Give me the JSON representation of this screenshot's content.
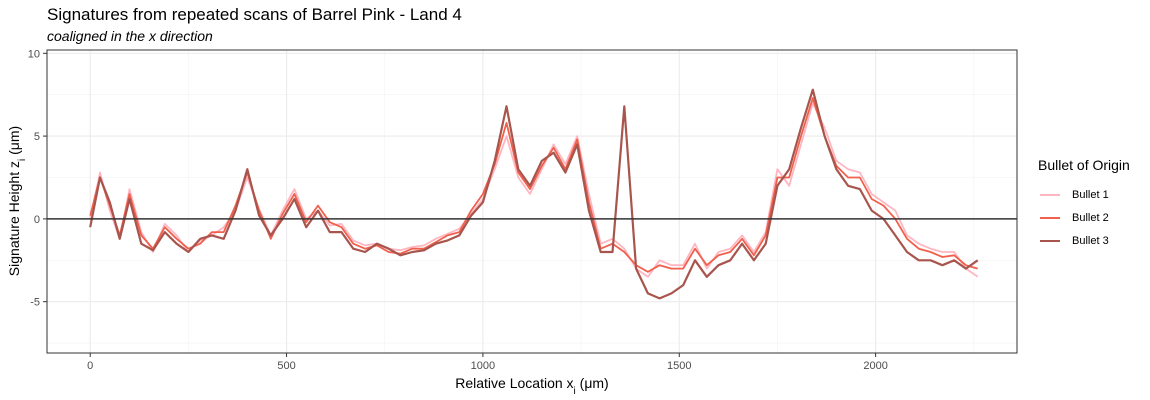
{
  "chart_data": {
    "type": "line",
    "title": "Signatures from repeated scans of Barrel Pink - Land 4",
    "subtitle": "coaligned in the x direction",
    "xlabel_main": "Relative Location x",
    "xlabel_sub": "i",
    "xlabel_unit": " (μm)",
    "ylabel_main": "Signature Height z",
    "ylabel_sub": "i",
    "ylabel_unit": " (μm)",
    "xlim": [
      -110,
      2360
    ],
    "ylim": [
      -8.1,
      10.2
    ],
    "x_ticks": [
      0,
      500,
      1000,
      1500,
      2000
    ],
    "y_ticks": [
      -5,
      0,
      5,
      10
    ],
    "y_tick_labels": [
      "-5",
      "0",
      "5",
      "10"
    ],
    "x_tick_labels": [
      "0",
      "500",
      "1000",
      "1500",
      "2000"
    ],
    "grid": true,
    "reference_line_y": 0,
    "legend": {
      "title": "Bullet of Origin",
      "position": "right",
      "entries": [
        "Bullet 1",
        "Bullet 2",
        "Bullet 3"
      ]
    },
    "series": [
      {
        "name": "Bullet 1",
        "color": "#ffb6c1",
        "x": [
          0,
          25,
          50,
          75,
          100,
          130,
          160,
          190,
          220,
          250,
          280,
          310,
          340,
          370,
          400,
          430,
          460,
          490,
          520,
          550,
          580,
          610,
          640,
          670,
          700,
          730,
          760,
          790,
          820,
          850,
          880,
          910,
          940,
          970,
          1000,
          1030,
          1060,
          1090,
          1120,
          1150,
          1180,
          1210,
          1240,
          1270,
          1300,
          1330,
          1360,
          1390,
          1420,
          1450,
          1480,
          1510,
          1540,
          1570,
          1600,
          1630,
          1660,
          1690,
          1720,
          1750,
          1780,
          1810,
          1840,
          1870,
          1900,
          1930,
          1960,
          1990,
          2020,
          2050,
          2080,
          2110,
          2140,
          2170,
          2200,
          2230,
          2260
        ],
        "values": [
          0.0,
          2.8,
          0.5,
          -1.2,
          1.8,
          -0.8,
          -2.0,
          -0.3,
          -1.0,
          -2.0,
          -1.3,
          -1.0,
          -0.5,
          0.5,
          2.5,
          0.6,
          -1.0,
          0.5,
          1.8,
          0.0,
          0.5,
          -0.4,
          -0.3,
          -1.3,
          -1.6,
          -1.5,
          -1.8,
          -1.9,
          -1.7,
          -1.6,
          -1.2,
          -0.9,
          -0.6,
          0.3,
          1.2,
          3.0,
          5.0,
          2.5,
          1.5,
          3.0,
          4.5,
          3.3,
          5.0,
          1.5,
          -1.5,
          -1.2,
          -1.8,
          -3.0,
          -3.5,
          -2.5,
          -2.8,
          -2.8,
          -1.5,
          -3.0,
          -2.0,
          -1.8,
          -1.0,
          -2.0,
          -0.8,
          3.0,
          2.0,
          4.5,
          7.0,
          5.5,
          3.5,
          3.0,
          2.8,
          1.5,
          1.0,
          0.5,
          -1.0,
          -1.5,
          -1.8,
          -2.0,
          -2.0,
          -3.0,
          -3.5
        ]
      },
      {
        "name": "Bullet 2",
        "color": "#f0604d",
        "x": [
          0,
          25,
          50,
          75,
          100,
          130,
          160,
          190,
          220,
          250,
          280,
          310,
          340,
          370,
          400,
          430,
          460,
          490,
          520,
          550,
          580,
          610,
          640,
          670,
          700,
          730,
          760,
          790,
          820,
          850,
          880,
          910,
          940,
          970,
          1000,
          1030,
          1060,
          1090,
          1120,
          1150,
          1180,
          1210,
          1240,
          1270,
          1300,
          1330,
          1360,
          1390,
          1420,
          1450,
          1480,
          1510,
          1540,
          1570,
          1600,
          1630,
          1660,
          1690,
          1720,
          1750,
          1780,
          1810,
          1840,
          1870,
          1900,
          1930,
          1960,
          1990,
          2020,
          2050,
          2080,
          2110,
          2140,
          2170,
          2200,
          2230,
          2260
        ],
        "values": [
          0.2,
          2.5,
          0.8,
          -1.0,
          1.5,
          -1.0,
          -1.8,
          -0.5,
          -1.2,
          -1.8,
          -1.5,
          -0.8,
          -0.8,
          0.8,
          2.8,
          0.5,
          -1.2,
          0.3,
          1.5,
          -0.2,
          0.8,
          -0.2,
          -0.5,
          -1.5,
          -1.8,
          -1.6,
          -2.0,
          -2.1,
          -1.8,
          -1.8,
          -1.4,
          -1.0,
          -0.8,
          0.5,
          1.5,
          3.3,
          5.8,
          2.8,
          1.8,
          3.2,
          4.3,
          3.0,
          4.8,
          1.0,
          -1.8,
          -1.5,
          -2.0,
          -2.8,
          -3.2,
          -2.8,
          -3.0,
          -3.0,
          -1.8,
          -2.8,
          -2.2,
          -2.0,
          -1.2,
          -2.2,
          -1.0,
          2.5,
          2.5,
          5.0,
          7.3,
          5.0,
          3.2,
          2.5,
          2.5,
          1.2,
          0.8,
          0.0,
          -1.2,
          -1.8,
          -2.0,
          -2.3,
          -2.2,
          -2.8,
          -3.0
        ]
      },
      {
        "name": "Bullet 3",
        "color": "#a8554d",
        "x": [
          0,
          25,
          50,
          75,
          100,
          130,
          160,
          190,
          220,
          250,
          280,
          310,
          340,
          370,
          400,
          430,
          460,
          490,
          520,
          550,
          580,
          610,
          640,
          670,
          700,
          730,
          760,
          790,
          820,
          850,
          880,
          910,
          940,
          970,
          1000,
          1030,
          1060,
          1090,
          1120,
          1150,
          1180,
          1210,
          1240,
          1270,
          1300,
          1330,
          1360,
          1390,
          1420,
          1450,
          1480,
          1510,
          1540,
          1570,
          1600,
          1630,
          1660,
          1690,
          1720,
          1750,
          1780,
          1810,
          1840,
          1870,
          1900,
          1930,
          1960,
          1990,
          2020,
          2050,
          2080,
          2110,
          2140,
          2170,
          2200,
          2230,
          2260
        ],
        "values": [
          -0.5,
          2.5,
          1.0,
          -1.2,
          1.2,
          -1.5,
          -1.9,
          -0.8,
          -1.5,
          -2.0,
          -1.2,
          -1.0,
          -1.2,
          0.5,
          3.0,
          0.2,
          -1.0,
          0.0,
          1.2,
          -0.5,
          0.5,
          -0.8,
          -0.8,
          -1.8,
          -2.0,
          -1.5,
          -1.8,
          -2.2,
          -2.0,
          -1.9,
          -1.5,
          -1.3,
          -1.0,
          0.2,
          1.0,
          3.5,
          6.8,
          3.0,
          2.0,
          3.5,
          4.0,
          2.8,
          4.5,
          0.5,
          -2.0,
          -2.0,
          6.8,
          -3.0,
          -4.5,
          -4.8,
          -4.5,
          -4.0,
          -2.5,
          -3.5,
          -2.8,
          -2.5,
          -1.5,
          -2.5,
          -1.5,
          2.0,
          3.0,
          5.5,
          7.8,
          5.0,
          3.0,
          2.0,
          1.8,
          0.5,
          0.0,
          -1.0,
          -2.0,
          -2.5,
          -2.5,
          -2.8,
          -2.5,
          -3.0,
          -2.5
        ]
      }
    ]
  }
}
